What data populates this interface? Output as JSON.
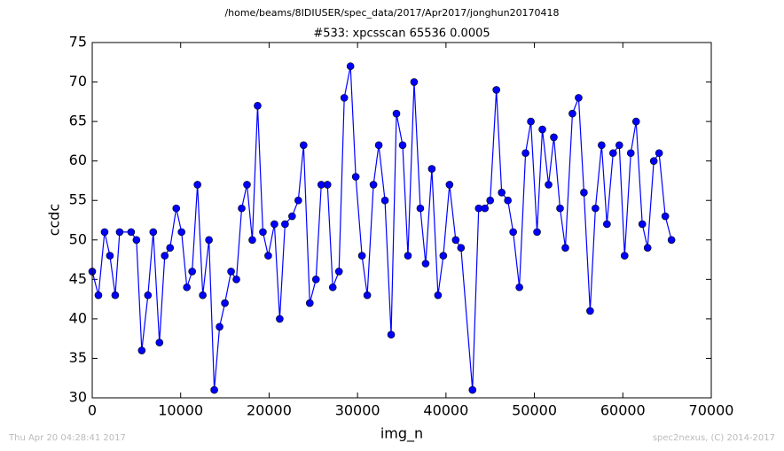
{
  "chart_data": {
    "type": "line",
    "suptitle": "/home/beams/8IDIUSER/spec_data/2017/Apr2017/jonghun20170418",
    "title": "#533: xpcsscan 65536 0.0005",
    "xlabel": "img_n",
    "ylabel": "ccdc",
    "footer_left": "Thu Apr 20 04:28:41 2017",
    "footer_right": "spec2nexus, (C) 2014-2017",
    "xlim": [
      0,
      70000
    ],
    "xticks": [
      0,
      10000,
      20000,
      30000,
      40000,
      50000,
      60000,
      70000
    ],
    "ylim": [
      30,
      75
    ],
    "yticks": [
      30,
      35,
      40,
      45,
      50,
      55,
      60,
      65,
      70,
      75
    ],
    "color": "#0000ff",
    "marker": "circle",
    "x": [
      0,
      700,
      1400,
      2000,
      2600,
      3100,
      4400,
      5000,
      5600,
      6300,
      6900,
      7600,
      8200,
      8800,
      9500,
      10100,
      10700,
      11300,
      11900,
      12500,
      13200,
      13800,
      14400,
      15000,
      15700,
      16300,
      16900,
      17500,
      18100,
      18700,
      19300,
      19900,
      20600,
      21200,
      21800,
      22600,
      23300,
      23900,
      24600,
      25300,
      25900,
      26600,
      27200,
      27900,
      28500,
      29200,
      29800,
      30500,
      31100,
      31800,
      32400,
      33100,
      33800,
      34400,
      35100,
      35700,
      36400,
      37100,
      37700,
      38400,
      39100,
      39700,
      40400,
      41100,
      41700,
      43000,
      43700,
      44400,
      45000,
      45700,
      46300,
      47000,
      47600,
      48300,
      49000,
      49600,
      50300,
      50900,
      51600,
      52200,
      52900,
      53500,
      54300,
      55000,
      55600,
      56300,
      56900,
      57600,
      58200,
      58900,
      59600,
      60200,
      60900,
      61500,
      62200,
      62800,
      63500,
      64100,
      64800,
      65500
    ],
    "values": [
      46,
      43,
      51,
      48,
      43,
      51,
      51,
      50,
      36,
      43,
      51,
      37,
      48,
      49,
      54,
      51,
      44,
      46,
      57,
      43,
      50,
      31,
      39,
      42,
      46,
      45,
      54,
      57,
      50,
      67,
      51,
      48,
      52,
      40,
      52,
      53,
      55,
      62,
      42,
      45,
      57,
      57,
      44,
      46,
      68,
      72,
      58,
      48,
      43,
      57,
      62,
      55,
      38,
      66,
      62,
      48,
      70,
      54,
      47,
      59,
      43,
      48,
      57,
      50,
      49,
      31,
      54,
      54,
      55,
      69,
      56,
      55,
      51,
      44,
      61,
      65,
      51,
      64,
      57,
      63,
      54,
      49,
      66,
      68,
      56,
      41,
      54,
      62,
      52,
      61,
      62,
      48,
      61,
      65,
      52,
      49,
      60,
      61,
      53,
      50
    ]
  }
}
